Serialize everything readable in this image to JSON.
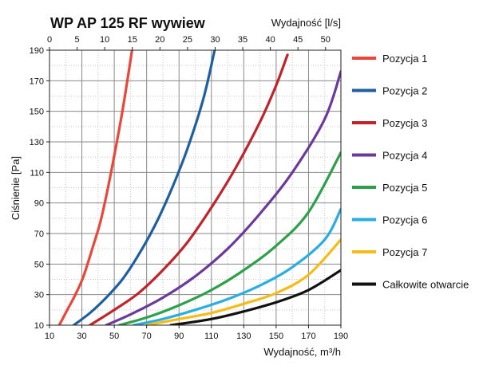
{
  "chart_data": {
    "type": "line",
    "title": "WP AP 125 RF wywiew",
    "xlabel": "Wydajność, m³/h",
    "x2label": "Wydajność [l/s]",
    "ylabel": "Ciśnienie [Pa]",
    "xlim": [
      10,
      190
    ],
    "ylim": [
      10,
      190
    ],
    "x2lim": [
      0,
      52.78
    ],
    "x_ticks": [
      "10",
      "30",
      "50",
      "70",
      "90",
      "110",
      "130",
      "150",
      "170",
      "190"
    ],
    "x2_ticks": [
      "0",
      "5",
      "10",
      "15",
      "20",
      "25",
      "30",
      "35",
      "40",
      "45",
      "50"
    ],
    "y_ticks": [
      "10",
      "30",
      "50",
      "70",
      "90",
      "110",
      "130",
      "150",
      "170",
      "190"
    ],
    "legend_position": "right",
    "series": [
      {
        "name": "Pozycja 1",
        "color": "#e8473a",
        "x": [
          16,
          21,
          26,
          31,
          37,
          42,
          48,
          55,
          61
        ],
        "y": [
          10,
          20,
          30,
          42,
          62,
          80,
          110,
          150,
          190
        ]
      },
      {
        "name": "Pozycja 2",
        "color": "#1f5fa0",
        "x": [
          25,
          35,
          45,
          55,
          65,
          75,
          85,
          95,
          105,
          112
        ],
        "y": [
          10,
          18,
          28,
          40,
          56,
          75,
          98,
          125,
          158,
          190
        ]
      },
      {
        "name": "Pozycja 3",
        "color": "#c0242a",
        "x": [
          35,
          50,
          65,
          80,
          95,
          110,
          125,
          140,
          150,
          157
        ],
        "y": [
          10,
          20,
          31,
          46,
          64,
          87,
          113,
          143,
          167,
          187
        ]
      },
      {
        "name": "Pozycja 4",
        "color": "#6b3a9a",
        "x": [
          45,
          60,
          80,
          100,
          120,
          140,
          160,
          180,
          190
        ],
        "y": [
          10,
          17,
          28,
          42,
          60,
          83,
          110,
          145,
          176
        ]
      },
      {
        "name": "Pozycja 5",
        "color": "#2ea04a",
        "x": [
          53,
          70,
          90,
          110,
          130,
          150,
          170,
          190
        ],
        "y": [
          10,
          15,
          23,
          33,
          46,
          62,
          84,
          123
        ]
      },
      {
        "name": "Pozycja 6",
        "color": "#2aaee0",
        "x": [
          62,
          80,
          100,
          120,
          140,
          160,
          180,
          190
        ],
        "y": [
          10,
          14,
          20,
          27,
          36,
          48,
          66,
          86
        ]
      },
      {
        "name": "Pozycja 7",
        "color": "#f5bc15",
        "x": [
          70,
          90,
          110,
          130,
          150,
          170,
          190
        ],
        "y": [
          10,
          14,
          18,
          24,
          31,
          43,
          66
        ]
      },
      {
        "name": "Całkowite otwarcie",
        "color": "#111111",
        "x": [
          85,
          110,
          130,
          150,
          170,
          190
        ],
        "y": [
          10,
          14,
          19,
          25,
          33,
          46
        ]
      }
    ]
  }
}
